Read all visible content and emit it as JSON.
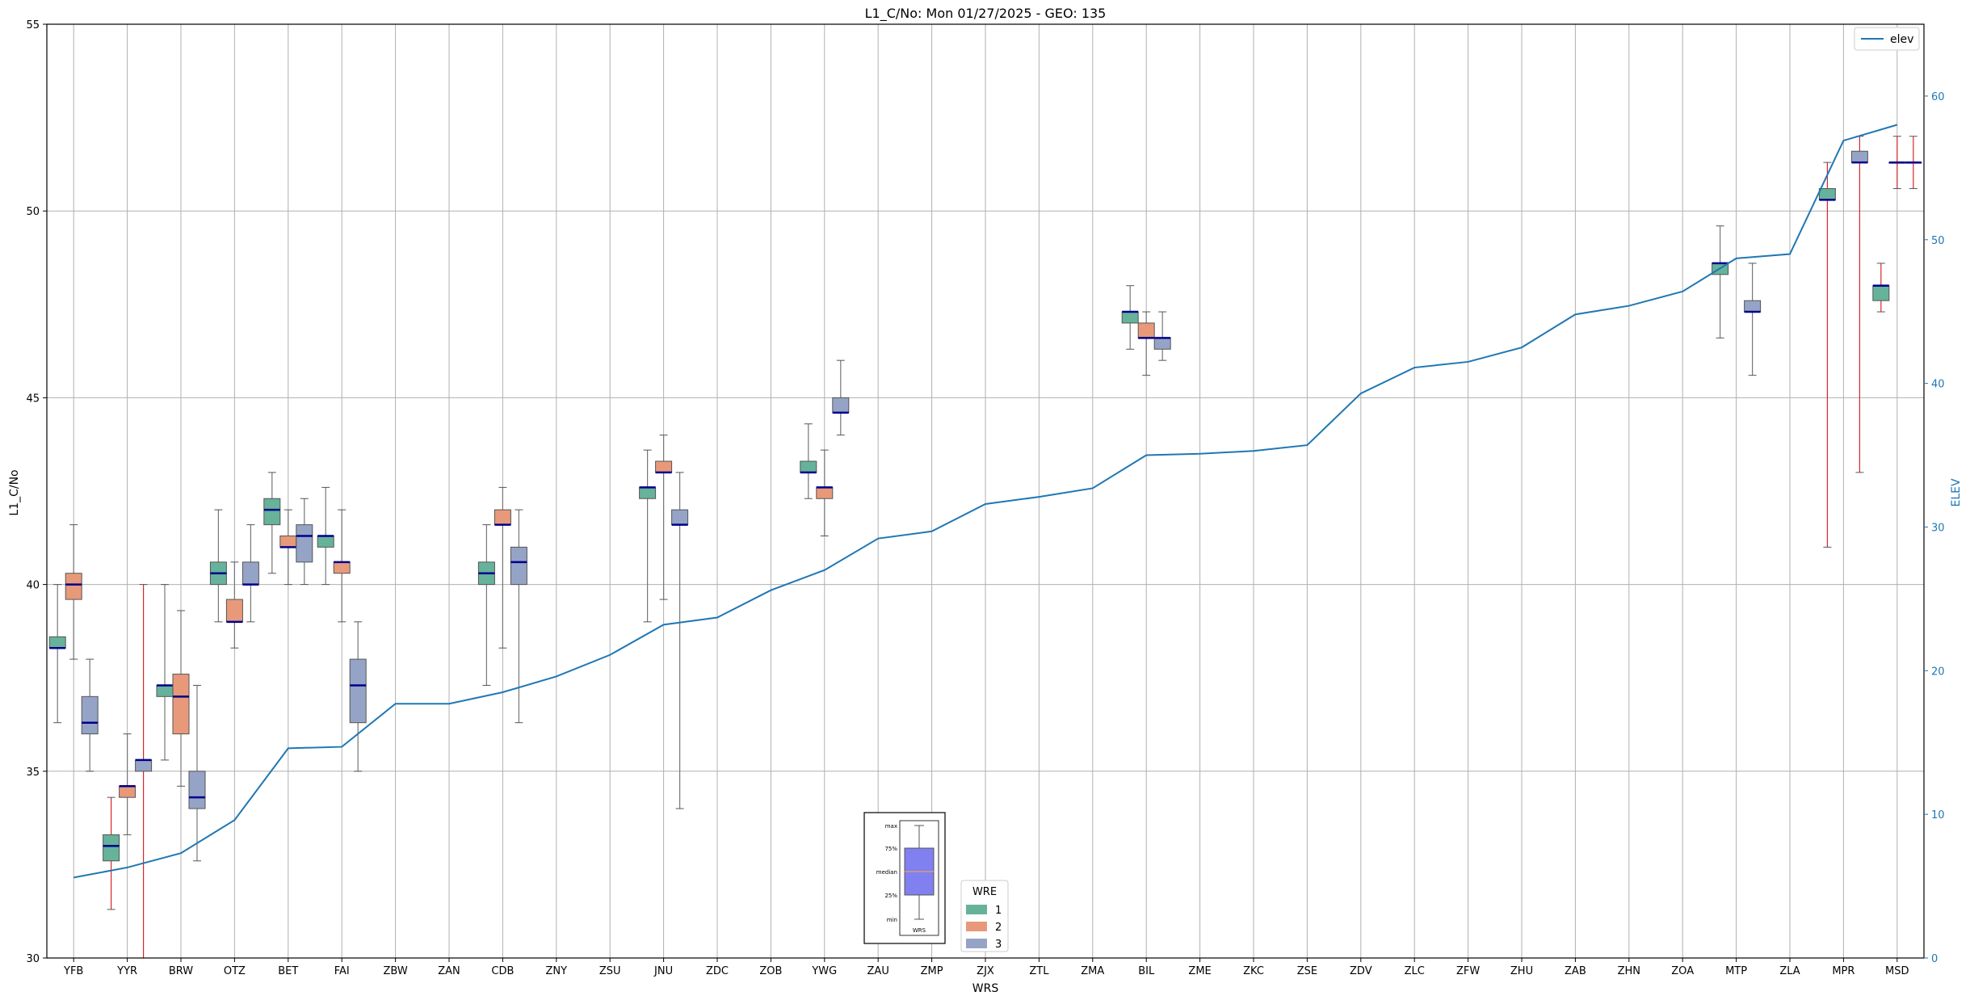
{
  "chart_data": {
    "type": "boxplot",
    "title": "L1_C/No: Mon 01/27/2025 - GEO: 135",
    "xlabel": "WRS",
    "ylabel": "L1_C/No",
    "y2label": "ELEV",
    "ylim": [
      30,
      55
    ],
    "y2lim": [
      0,
      65
    ],
    "yticks": [
      30,
      35,
      40,
      45,
      50,
      55
    ],
    "y2ticks": [
      0,
      10,
      20,
      30,
      40,
      50,
      60
    ],
    "grid": true,
    "categories": [
      "YFB",
      "YYR",
      "BRW",
      "OTZ",
      "BET",
      "FAI",
      "ZBW",
      "ZAN",
      "CDB",
      "ZNY",
      "ZSU",
      "JNU",
      "ZDC",
      "ZOB",
      "YWG",
      "ZAU",
      "ZMP",
      "ZJX",
      "ZTL",
      "ZMA",
      "BIL",
      "ZME",
      "ZKC",
      "ZSE",
      "ZDV",
      "ZLC",
      "ZFW",
      "ZHU",
      "ZAB",
      "ZHN",
      "ZOA",
      "MTP",
      "ZLA",
      "MPR",
      "MSD"
    ],
    "elev": [
      5.6,
      6.3,
      7.3,
      9.6,
      14.6,
      14.7,
      17.7,
      17.7,
      18.5,
      19.6,
      21.1,
      23.2,
      23.7,
      25.6,
      27.0,
      29.2,
      29.7,
      31.6,
      32.1,
      32.7,
      35.0,
      35.1,
      35.3,
      35.7,
      39.3,
      41.1,
      41.5,
      42.5,
      44.8,
      45.4,
      46.4,
      48.7,
      49.0,
      56.9,
      58.0
    ],
    "elev_legend": "elev",
    "series": [
      {
        "name": "1",
        "color": "#66b29b",
        "boxes": [
          {
            "cat": "YFB",
            "min": 36.3,
            "q1": 38.3,
            "med": 38.3,
            "q3": 38.6,
            "max": 40.0
          },
          {
            "cat": "YYR",
            "min": 31.3,
            "q1": 32.6,
            "med": 33.0,
            "q3": 33.3,
            "max": 34.3,
            "whisker_color": "#d62728"
          },
          {
            "cat": "BRW",
            "min": 35.3,
            "q1": 37.0,
            "med": 37.3,
            "q3": 37.3,
            "max": 40.0
          },
          {
            "cat": "OTZ",
            "min": 39.0,
            "q1": 40.0,
            "med": 40.3,
            "q3": 40.6,
            "max": 42.0
          },
          {
            "cat": "BET",
            "min": 40.3,
            "q1": 41.6,
            "med": 42.0,
            "q3": 42.3,
            "max": 43.0
          },
          {
            "cat": "FAI",
            "min": 40.0,
            "q1": 41.0,
            "med": 41.3,
            "q3": 41.3,
            "max": 42.6
          },
          {
            "cat": "CDB",
            "min": 37.3,
            "q1": 40.0,
            "med": 40.3,
            "q3": 40.6,
            "max": 41.6
          },
          {
            "cat": "JNU",
            "min": 39.0,
            "q1": 42.3,
            "med": 42.6,
            "q3": 42.6,
            "max": 43.6
          },
          {
            "cat": "YWG",
            "min": 42.3,
            "q1": 43.0,
            "med": 43.0,
            "q3": 43.3,
            "max": 44.3
          },
          {
            "cat": "BIL",
            "min": 46.3,
            "q1": 47.0,
            "med": 47.3,
            "q3": 47.3,
            "max": 48.0
          },
          {
            "cat": "MTP",
            "min": 46.6,
            "q1": 48.3,
            "med": 48.6,
            "q3": 48.6,
            "max": 49.6
          },
          {
            "cat": "MPR",
            "min": 41.0,
            "q1": 50.3,
            "med": 50.3,
            "q3": 50.6,
            "max": 51.3,
            "whisker_color": "#d62728"
          },
          {
            "cat": "MSD",
            "min": 47.3,
            "q1": 47.6,
            "med": 48.0,
            "q3": 48.0,
            "max": 48.6,
            "whisker_color": "#d62728"
          }
        ]
      },
      {
        "name": "2",
        "color": "#e8997a",
        "boxes": [
          {
            "cat": "YFB",
            "min": 38.0,
            "q1": 39.6,
            "med": 40.0,
            "q3": 40.3,
            "max": 41.6
          },
          {
            "cat": "YYR",
            "min": 33.3,
            "q1": 34.3,
            "med": 34.6,
            "q3": 34.6,
            "max": 36.0
          },
          {
            "cat": "BRW",
            "min": 34.6,
            "q1": 36.0,
            "med": 37.0,
            "q3": 37.6,
            "max": 39.3
          },
          {
            "cat": "OTZ",
            "min": 38.3,
            "q1": 39.0,
            "med": 39.0,
            "q3": 39.6,
            "max": 40.6
          },
          {
            "cat": "BET",
            "min": 40.0,
            "q1": 41.0,
            "med": 41.0,
            "q3": 41.3,
            "max": 42.0
          },
          {
            "cat": "FAI",
            "min": 39.0,
            "q1": 40.3,
            "med": 40.6,
            "q3": 40.6,
            "max": 42.0
          },
          {
            "cat": "CDB",
            "min": 38.3,
            "q1": 41.6,
            "med": 41.6,
            "q3": 42.0,
            "max": 42.6
          },
          {
            "cat": "JNU",
            "min": 39.6,
            "q1": 43.0,
            "med": 43.0,
            "q3": 43.3,
            "max": 44.0
          },
          {
            "cat": "YWG",
            "min": 41.3,
            "q1": 42.3,
            "med": 42.6,
            "q3": 42.6,
            "max": 43.6
          },
          {
            "cat": "BIL",
            "min": 45.6,
            "q1": 46.6,
            "med": 46.6,
            "q3": 47.0,
            "max": 47.3
          },
          {
            "cat": "MSD",
            "min": 50.6,
            "q1": 51.3,
            "med": 51.3,
            "q3": 51.3,
            "max": 52.0,
            "whisker_color": "#d62728"
          }
        ]
      },
      {
        "name": "3",
        "color": "#95a3c6",
        "boxes": [
          {
            "cat": "YFB",
            "min": 35.0,
            "q1": 36.0,
            "med": 36.3,
            "q3": 37.0,
            "max": 38.0
          },
          {
            "cat": "YYR",
            "min": 30.0,
            "q1": 35.0,
            "med": 35.3,
            "q3": 35.3,
            "max": 40.0,
            "whisker_color": "#d62728"
          },
          {
            "cat": "BRW",
            "min": 32.6,
            "q1": 34.0,
            "med": 34.3,
            "q3": 35.0,
            "max": 37.3
          },
          {
            "cat": "OTZ",
            "min": 39.0,
            "q1": 40.0,
            "med": 40.0,
            "q3": 40.6,
            "max": 41.6
          },
          {
            "cat": "BET",
            "min": 40.0,
            "q1": 40.6,
            "med": 41.3,
            "q3": 41.6,
            "max": 42.3
          },
          {
            "cat": "FAI",
            "min": 35.0,
            "q1": 36.3,
            "med": 37.3,
            "q3": 38.0,
            "max": 39.0
          },
          {
            "cat": "CDB",
            "min": 36.3,
            "q1": 40.0,
            "med": 40.6,
            "q3": 41.0,
            "max": 42.0
          },
          {
            "cat": "JNU",
            "min": 34.0,
            "q1": 41.6,
            "med": 41.6,
            "q3": 42.0,
            "max": 43.0
          },
          {
            "cat": "YWG",
            "min": 44.0,
            "q1": 44.6,
            "med": 44.6,
            "q3": 45.0,
            "max": 46.0
          },
          {
            "cat": "BIL",
            "min": 46.0,
            "q1": 46.3,
            "med": 46.6,
            "q3": 46.6,
            "max": 47.3
          },
          {
            "cat": "MTP",
            "min": 45.6,
            "q1": 47.3,
            "med": 47.3,
            "q3": 47.6,
            "max": 48.6
          },
          {
            "cat": "MPR",
            "min": 43.0,
            "q1": 51.3,
            "med": 51.3,
            "q3": 51.6,
            "max": 52.0,
            "whisker_color": "#d62728"
          },
          {
            "cat": "MSD",
            "min": 50.6,
            "q1": 51.3,
            "med": 51.3,
            "q3": 51.3,
            "max": 52.0,
            "whisker_color": "#d62728"
          }
        ]
      }
    ],
    "legend_title": "WRE",
    "inset_key": {
      "labels": [
        "max",
        "75%",
        "median",
        "25%",
        "min"
      ],
      "xlabel": "WRS"
    }
  }
}
